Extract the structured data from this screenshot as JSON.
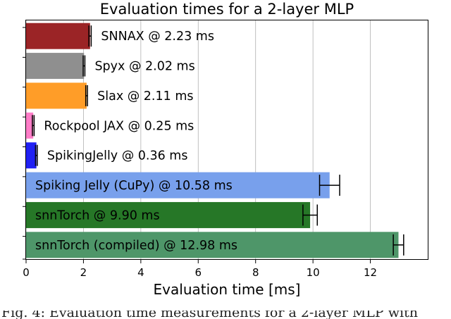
{
  "chart_data": {
    "type": "bar",
    "orientation": "horizontal",
    "title": "Evaluation times for a 2-layer MLP",
    "xlabel": "Evaluation time [ms]",
    "ylabel": "",
    "xlim": [
      0,
      14
    ],
    "xticks": [
      "0",
      "2",
      "4",
      "6",
      "8",
      "10",
      "12"
    ],
    "grid": "vertical",
    "bars": [
      {
        "label": "SNNAX @ 2.23 ms",
        "value": 2.23,
        "error": 0.04,
        "color": "#9b2426"
      },
      {
        "label": "Spyx @ 2.02 ms",
        "value": 2.02,
        "error": 0.03,
        "color": "#8f8f8f"
      },
      {
        "label": "Slax @ 2.11 ms",
        "value": 2.11,
        "error": 0.03,
        "color": "#ff9d28"
      },
      {
        "label": "Rockpool JAX @ 0.25 ms",
        "value": 0.25,
        "error": 0.03,
        "color": "#ff7dc8"
      },
      {
        "label": "SpikingJelly @ 0.36 ms",
        "value": 0.36,
        "error": 0.03,
        "color": "#2121f4"
      },
      {
        "label": "Spiking Jelly (CuPy) @ 10.58 ms",
        "value": 10.58,
        "error": 0.35,
        "color": "#78a0ec"
      },
      {
        "label": "snnTorch @ 9.90 ms",
        "value": 9.9,
        "error": 0.25,
        "color": "#267727"
      },
      {
        "label": "snnTorch (compiled) @ 12.98 ms",
        "value": 12.98,
        "error": 0.18,
        "color": "#4e9669"
      }
    ]
  },
  "caption_fragment": "Fig. 4: Evaluation time measurements for a 2-layer MLP with"
}
